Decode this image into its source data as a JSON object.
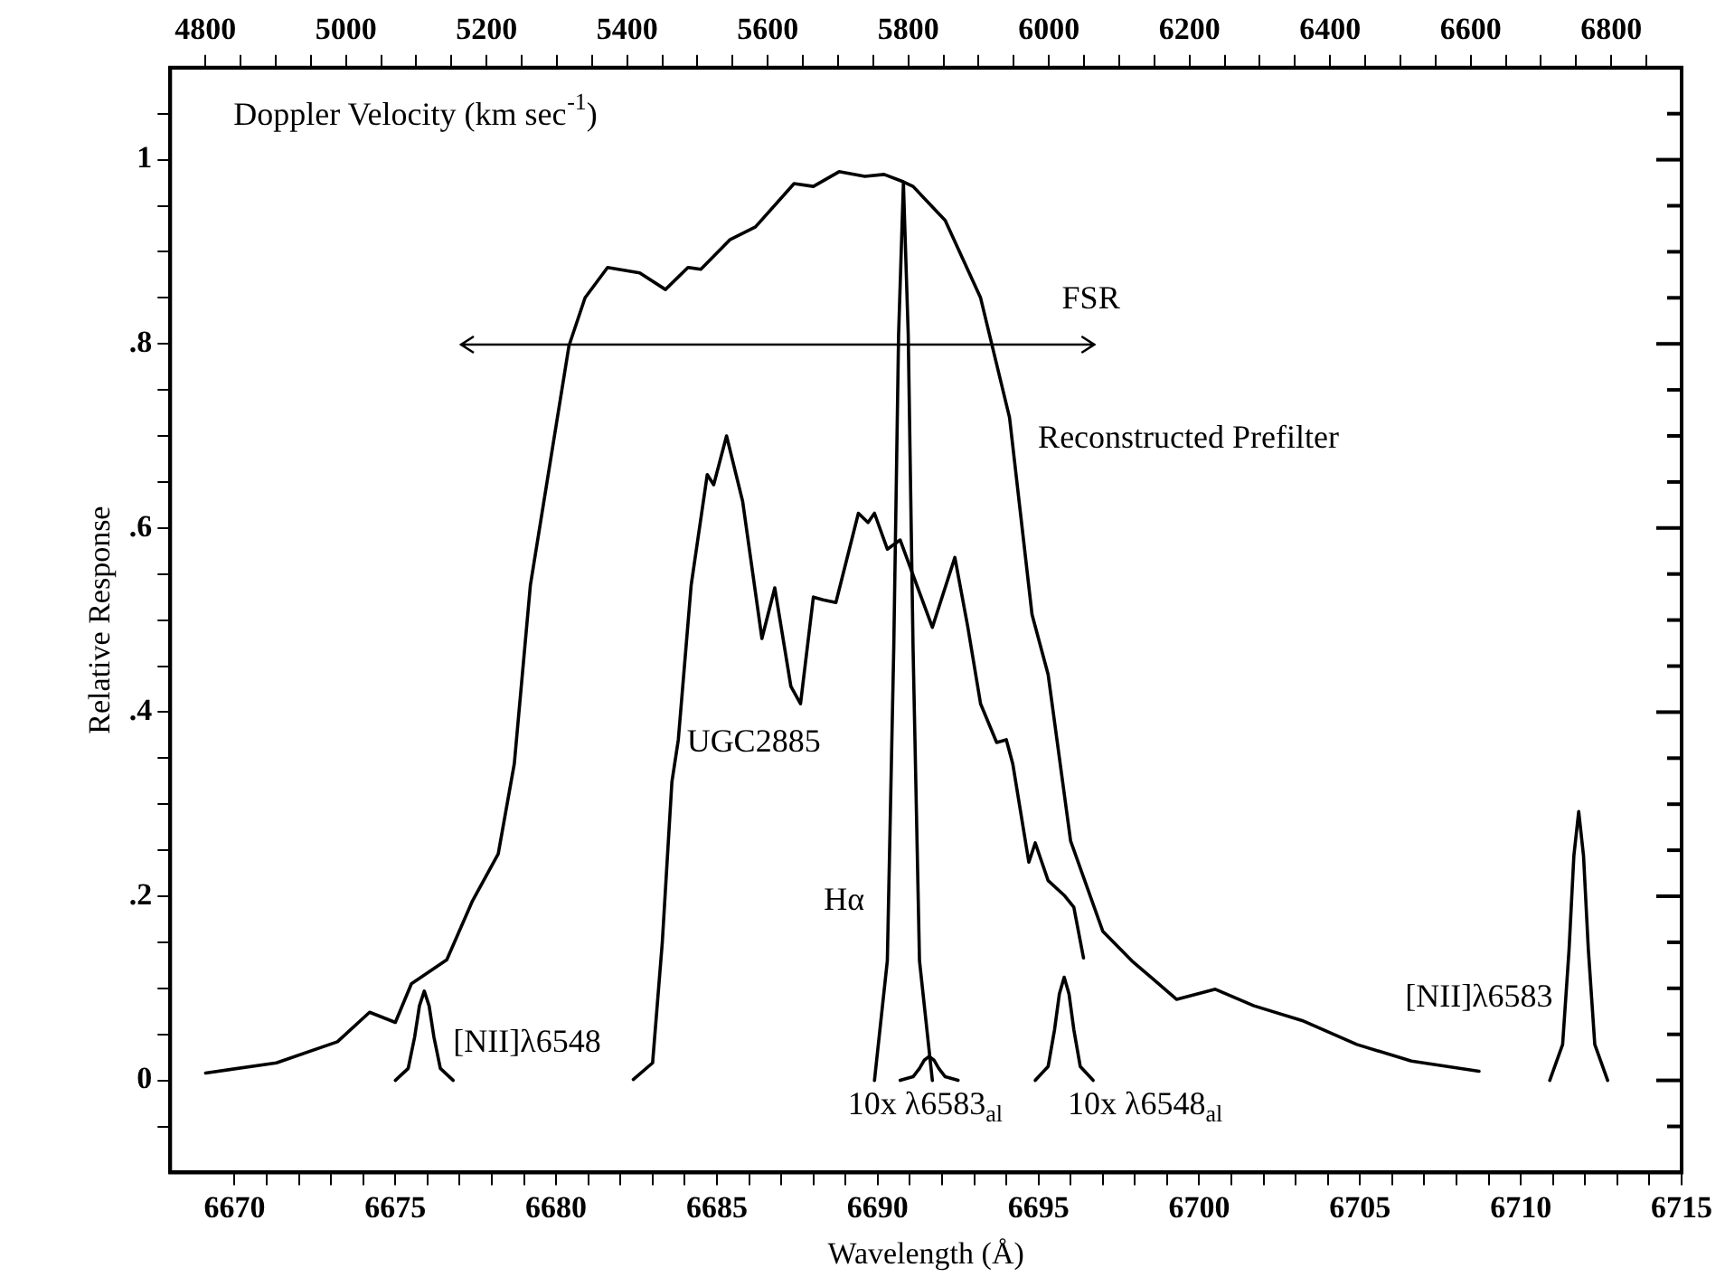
{
  "chart_data": {
    "type": "line",
    "xlabel": "Wavelength (Å)",
    "ylabel": "Relative Response",
    "x2label": "Doppler Velocity (km sec$^{-1}$)",
    "xlim": [
      6668,
      6715
    ],
    "ylim": [
      -0.1,
      1.1
    ],
    "x2lim": [
      4750,
      6900
    ],
    "xticks": [
      6670,
      {
        "value": 6671,
        "label": null
      },
      {
        "value": 6672,
        "label": null
      },
      {
        "value": 6673,
        "label": null
      },
      {
        "value": 6674,
        "label": null
      },
      6675,
      {
        "value": 6676,
        "label": null
      },
      {
        "value": 6677,
        "label": null
      },
      {
        "value": 6678,
        "label": null
      },
      {
        "value": 6679,
        "label": null
      },
      6680,
      {
        "value": 6681,
        "label": null
      },
      {
        "value": 6682,
        "label": null
      },
      {
        "value": 6683,
        "label": null
      },
      {
        "value": 6684,
        "label": null
      },
      6685,
      {
        "value": 6686,
        "label": null
      },
      {
        "value": 6687,
        "label": null
      },
      {
        "value": 6688,
        "label": null
      },
      {
        "value": 6689,
        "label": null
      },
      6690,
      {
        "value": 6691,
        "label": null
      },
      {
        "value": 6692,
        "label": null
      },
      {
        "value": 6693,
        "label": null
      },
      {
        "value": 6694,
        "label": null
      },
      6695,
      {
        "value": 6696,
        "label": null
      },
      {
        "value": 6697,
        "label": null
      },
      {
        "value": 6698,
        "label": null
      },
      {
        "value": 6699,
        "label": null
      },
      6700,
      {
        "value": 6701,
        "label": null
      },
      {
        "value": 6702,
        "label": null
      },
      {
        "value": 6703,
        "label": null
      },
      {
        "value": 6704,
        "label": null
      },
      6705,
      {
        "value": 6706,
        "label": null
      },
      {
        "value": 6707,
        "label": null
      },
      {
        "value": 6708,
        "label": null
      },
      {
        "value": 6709,
        "label": null
      },
      6710,
      {
        "value": 6711,
        "label": null
      },
      {
        "value": 6712,
        "label": null
      },
      {
        "value": 6713,
        "label": null
      },
      {
        "value": 6714,
        "label": null
      },
      6715
    ],
    "x2ticks": [
      4800,
      {
        "value": 4850,
        "label": null
      },
      {
        "value": 4900,
        "label": null
      },
      {
        "value": 4950,
        "label": null
      },
      5000,
      {
        "value": 5050,
        "label": null
      },
      {
        "value": 5100,
        "label": null
      },
      {
        "value": 5150,
        "label": null
      },
      5200,
      {
        "value": 5250,
        "label": null
      },
      {
        "value": 5300,
        "label": null
      },
      {
        "value": 5350,
        "label": null
      },
      5400,
      {
        "value": 5450,
        "label": null
      },
      {
        "value": 5500,
        "label": null
      },
      {
        "value": 5550,
        "label": null
      },
      5600,
      {
        "value": 5650,
        "label": null
      },
      {
        "value": 5700,
        "label": null
      },
      {
        "value": 5750,
        "label": null
      },
      5800,
      {
        "value": 5850,
        "label": null
      },
      {
        "value": 5900,
        "label": null
      },
      {
        "value": 5950,
        "label": null
      },
      6000,
      {
        "value": 6050,
        "label": null
      },
      {
        "value": 6100,
        "label": null
      },
      {
        "value": 6150,
        "label": null
      },
      6200,
      {
        "value": 6250,
        "label": null
      },
      {
        "value": 6300,
        "label": null
      },
      {
        "value": 6350,
        "label": null
      },
      6400,
      {
        "value": 6450,
        "label": null
      },
      {
        "value": 6500,
        "label": null
      },
      {
        "value": 6550,
        "label": null
      },
      6600,
      {
        "value": 6650,
        "label": null
      },
      {
        "value": 6700,
        "label": null
      },
      {
        "value": 6750,
        "label": null
      },
      6800,
      {
        "value": 6850,
        "label": null
      }
    ],
    "yticks": [
      {
        "value": -0.05,
        "label": null
      },
      0,
      {
        "value": 0.05,
        "label": null
      },
      {
        "value": 0.1,
        "label": null
      },
      {
        "value": 0.15,
        "label": null
      },
      {
        "value": 0.2,
        "label": ".2"
      },
      {
        "value": 0.25,
        "label": null
      },
      {
        "value": 0.3,
        "label": null
      },
      {
        "value": 0.35,
        "label": null
      },
      {
        "value": 0.4,
        "label": ".4"
      },
      {
        "value": 0.45,
        "label": null
      },
      {
        "value": 0.5,
        "label": null
      },
      {
        "value": 0.55,
        "label": null
      },
      {
        "value": 0.6,
        "label": ".6"
      },
      {
        "value": 0.65,
        "label": null
      },
      {
        "value": 0.7,
        "label": null
      },
      {
        "value": 0.75,
        "label": null
      },
      {
        "value": 0.8,
        "label": ".8"
      },
      {
        "value": 0.85,
        "label": null
      },
      {
        "value": 0.9,
        "label": null
      },
      {
        "value": 0.95,
        "label": null
      },
      1,
      {
        "value": 1.05,
        "label": null
      }
    ],
    "series": [
      {
        "name": "Reconstructed Prefilter",
        "color": "#000000",
        "x": [
          6669.1,
          6671.3,
          6673.2,
          6674.2,
          6675.0,
          6675.5,
          6676.6,
          6677.4,
          6678.2,
          6678.7,
          6679.2,
          6680.4,
          6680.9,
          6681.6,
          6682.6,
          6683.4,
          6684.1,
          6684.5,
          6685.4,
          6686.2,
          6687.4,
          6688.0,
          6688.8,
          6689.6,
          6690.2,
          6690.8,
          6691.1,
          6692.1,
          6693.2,
          6694.1,
          6694.8,
          6695.3,
          6696.0,
          6697.0,
          6697.9,
          6699.3,
          6700.5,
          6701.7,
          6703.2,
          6704.9,
          6706.6,
          6708.7
        ],
        "values": [
          0.008,
          0.019,
          0.042,
          0.074,
          0.063,
          0.105,
          0.131,
          0.195,
          0.246,
          0.344,
          0.538,
          0.798,
          0.85,
          0.883,
          0.877,
          0.859,
          0.883,
          0.881,
          0.913,
          0.927,
          0.974,
          0.971,
          0.987,
          0.982,
          0.984,
          0.976,
          0.971,
          0.934,
          0.85,
          0.72,
          0.506,
          0.441,
          0.26,
          0.162,
          0.13,
          0.088,
          0.099,
          0.081,
          0.065,
          0.039,
          0.021,
          0.01
        ]
      },
      {
        "name": "UGC2885",
        "color": "#000000",
        "x": [
          6682.4,
          6683.0,
          6683.3,
          6683.6,
          6683.8,
          6684.2,
          6684.7,
          6684.9,
          6685.3,
          6685.8,
          6686.4,
          6686.8,
          6687.3,
          6687.6,
          6688.0,
          6688.3,
          6688.7,
          6689.4,
          6689.7,
          6689.9,
          6690.3,
          6690.7,
          6691.7,
          6692.4,
          6692.8,
          6693.2,
          6693.7,
          6694.0,
          6694.2,
          6694.7,
          6694.9,
          6695.3,
          6695.8,
          6696.1,
          6696.4
        ],
        "values": [
          0.001,
          0.019,
          0.149,
          0.324,
          0.37,
          0.538,
          0.658,
          0.647,
          0.7,
          0.629,
          0.48,
          0.535,
          0.428,
          0.409,
          0.525,
          0.522,
          0.519,
          0.616,
          0.606,
          0.616,
          0.577,
          0.587,
          0.492,
          0.568,
          0.493,
          0.409,
          0.367,
          0.37,
          0.344,
          0.237,
          0.258,
          0.217,
          0.201,
          0.188,
          0.133
        ]
      },
      {
        "name": "Hα",
        "color": "#000000",
        "x": [
          6689.9,
          6690.3,
          6690.5,
          6690.65,
          6690.8,
          6690.95,
          6691.1,
          6691.3,
          6691.7
        ],
        "values": [
          0,
          0.13,
          0.47,
          0.81,
          0.975,
          0.81,
          0.47,
          0.13,
          0
        ]
      },
      {
        "name": "10x λ6583$_{al}$",
        "color": "#000000",
        "x": [
          6690.7,
          6691.1,
          6691.3,
          6691.45,
          6691.6,
          6691.75,
          6691.9,
          6692.1,
          6692.5
        ],
        "values": [
          0,
          0.004,
          0.013,
          0.022,
          0.026,
          0.022,
          0.013,
          0.004,
          0
        ]
      },
      {
        "name": "10x λ6548$_{al}$",
        "color": "#000000",
        "x": [
          6694.9,
          6695.3,
          6695.5,
          6695.65,
          6695.8,
          6695.95,
          6696.1,
          6696.3,
          6696.7
        ],
        "values": [
          0,
          0.015,
          0.055,
          0.094,
          0.112,
          0.094,
          0.055,
          0.015,
          0
        ]
      },
      {
        "name": "[NII]λ6548",
        "color": "#000000",
        "x": [
          6675.0,
          6675.4,
          6675.6,
          6675.75,
          6675.9,
          6676.05,
          6676.2,
          6676.4,
          6676.8
        ],
        "values": [
          0,
          0.013,
          0.047,
          0.081,
          0.097,
          0.081,
          0.047,
          0.013,
          0
        ]
      },
      {
        "name": "[NII]λ6583",
        "color": "#000000",
        "x": [
          6710.9,
          6711.3,
          6711.5,
          6711.65,
          6711.8,
          6711.95,
          6712.1,
          6712.3,
          6712.7
        ],
        "values": [
          0,
          0.039,
          0.142,
          0.244,
          0.292,
          0.244,
          0.142,
          0.039,
          0
        ]
      }
    ],
    "annotations": [
      "FSR"
    ]
  }
}
